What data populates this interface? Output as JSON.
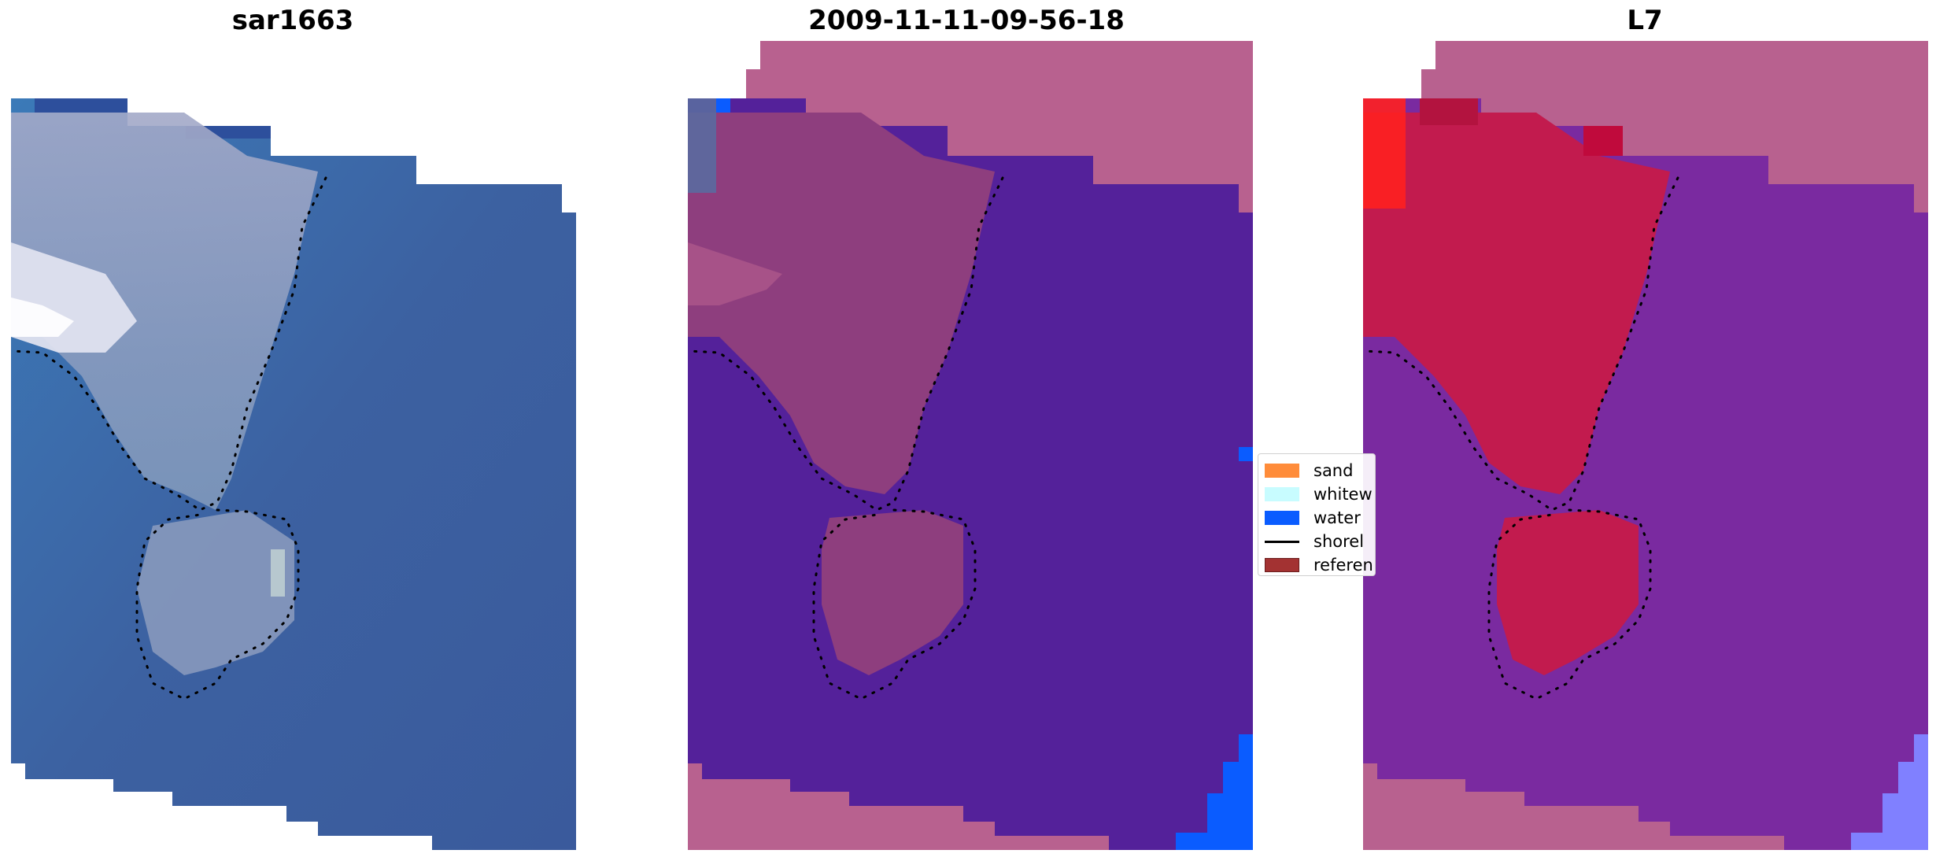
{
  "panels": [
    {
      "title": "sar1663"
    },
    {
      "title": "2009-11-11-09-56-18"
    },
    {
      "title": "L7"
    }
  ],
  "legend": {
    "items": [
      {
        "label": "sand",
        "color": "#ff8c3a"
      },
      {
        "label": "whitew",
        "color": "#c8fcff"
      },
      {
        "label": "water",
        "color": "#0a5cff"
      },
      {
        "label": "shorel",
        "color": "#000000"
      },
      {
        "label": "referen",
        "color": "#a33232"
      }
    ]
  },
  "colors": {
    "rgb_water": "#3a5c9c",
    "rgb_land": "#8fa0bd",
    "class_background": "#b8618f",
    "class_water_overlay": "#54219a",
    "class_sand_overlay": "#8e3e7e",
    "class_water_pixel": "#0a5cff",
    "mndwi_water": "#7a2aa0",
    "mndwi_land": "#c21b4e",
    "mndwi_bright": "#ff2020",
    "mndwi_blue": "#8080ff"
  }
}
